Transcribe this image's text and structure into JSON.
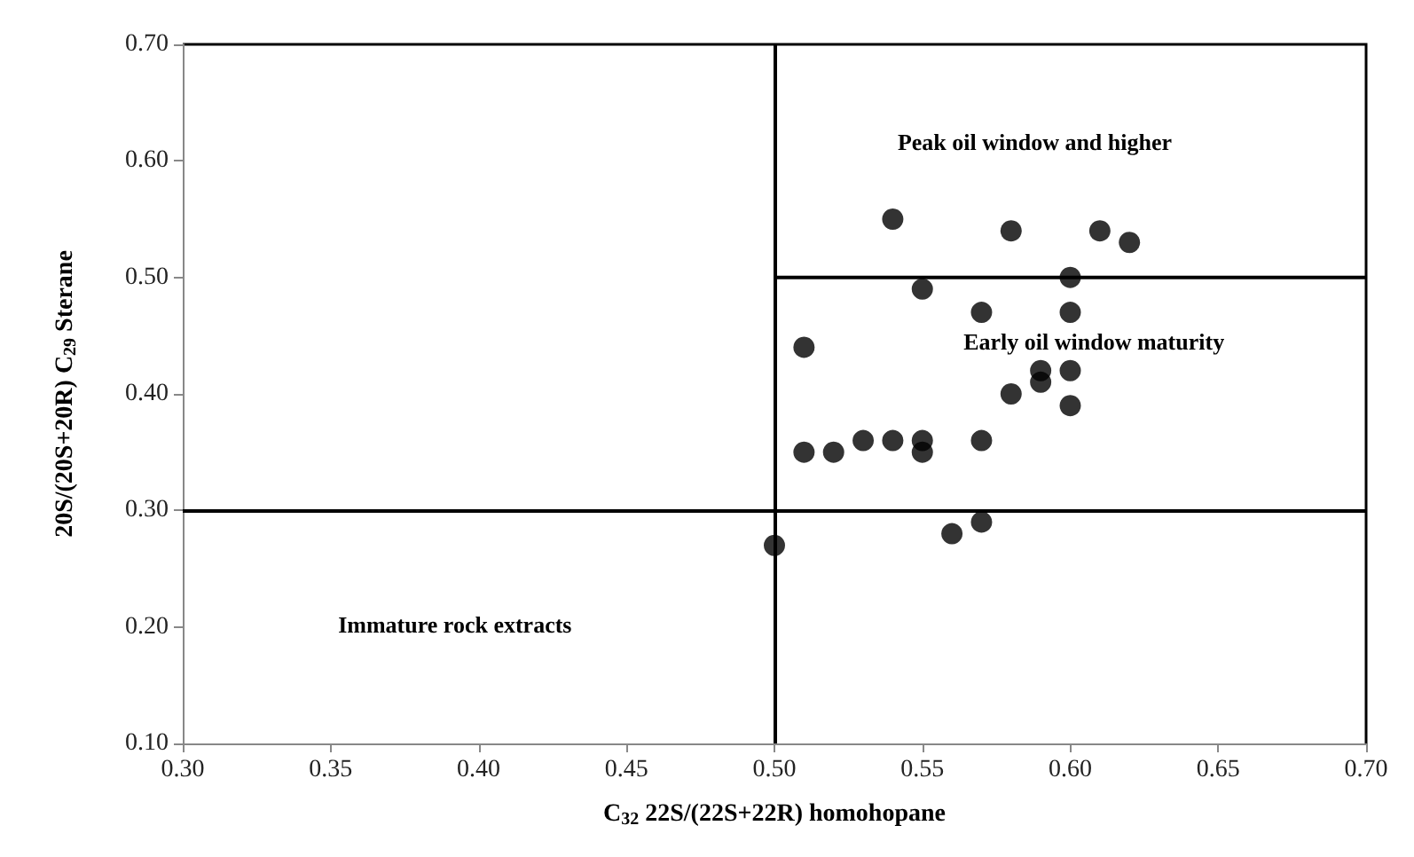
{
  "chart_data": {
    "type": "scatter",
    "xlabel": "C$_{32}$ 22S/(22S+22R) homohopane",
    "ylabel": "20S/(20S+20R) C$_{29}$ Sterane",
    "xlim": [
      0.3,
      0.7
    ],
    "xticks": [
      {
        "value": 0.3,
        "label": "0.30"
      },
      {
        "value": 0.35,
        "label": "0.35"
      },
      {
        "value": 0.4,
        "label": "0.40"
      },
      {
        "value": 0.45,
        "label": "0.45"
      },
      {
        "value": 0.5,
        "label": "0.50"
      },
      {
        "value": 0.55,
        "label": "0.55"
      },
      {
        "value": 0.6,
        "label": "0.60"
      },
      {
        "value": 0.65,
        "label": "0.65"
      },
      {
        "value": 0.7,
        "label": "0.70"
      }
    ],
    "ylim": [
      0.1,
      0.7
    ],
    "yticks": [
      {
        "value": 0.1,
        "label": "0.10"
      },
      {
        "value": 0.2,
        "label": "0.20"
      },
      {
        "value": 0.3,
        "label": "0.30"
      },
      {
        "value": 0.4,
        "label": "0.40"
      },
      {
        "value": 0.5,
        "label": "0.50"
      },
      {
        "value": 0.6,
        "label": "0.60"
      },
      {
        "value": 0.7,
        "label": "0.70"
      }
    ],
    "grid": false,
    "marker": "circle",
    "series": [
      {
        "color": "#000000",
        "x": [
          0.5,
          0.51,
          0.51,
          0.52,
          0.53,
          0.54,
          0.54,
          0.55,
          0.55,
          0.55,
          0.56,
          0.57,
          0.57,
          0.57,
          0.58,
          0.58,
          0.59,
          0.59,
          0.6,
          0.6,
          0.6,
          0.6,
          0.61,
          0.62
        ],
        "values": [
          0.27,
          0.44,
          0.35,
          0.35,
          0.36,
          0.36,
          0.55,
          0.49,
          0.36,
          0.35,
          0.28,
          0.29,
          0.36,
          0.47,
          0.54,
          0.4,
          0.42,
          0.41,
          0.42,
          0.39,
          0.47,
          0.5,
          0.54,
          0.53
        ]
      },
      {
        "type": "line",
        "color": "#000000",
        "marker": "none",
        "x": [
          0.5,
          0.7
        ],
        "values": [
          0.5,
          0.5
        ]
      }
    ],
    "ref_lines": [
      {
        "axis": "x",
        "value": 0.5,
        "color": "#000000"
      },
      {
        "axis": "y",
        "value": 0.3,
        "color": "#000000"
      }
    ],
    "annotations": [
      "Peak oil window and higher",
      "Early oil window maturity",
      "Immature rock extracts"
    ]
  }
}
